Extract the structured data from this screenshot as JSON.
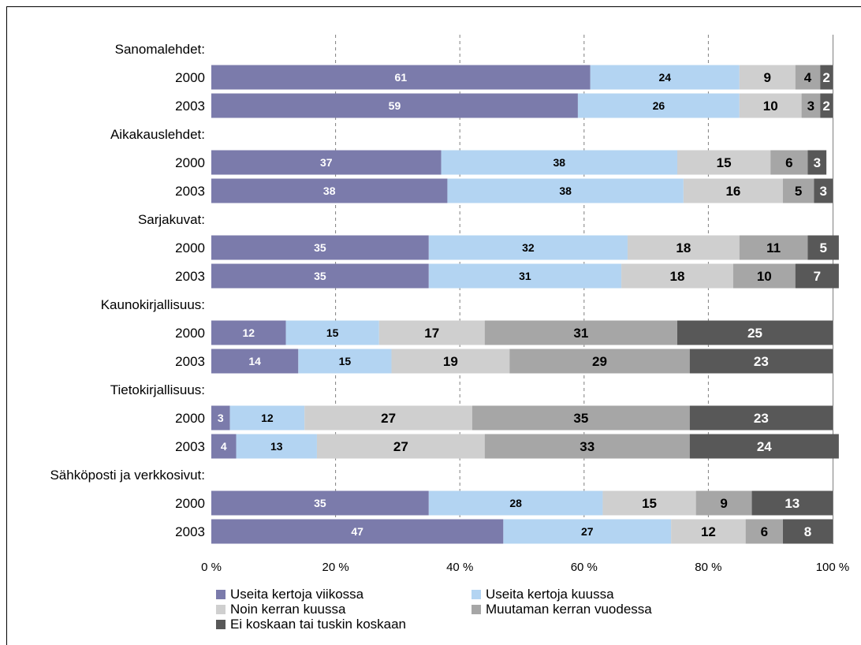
{
  "chart_data": {
    "type": "bar",
    "orientation": "horizontal",
    "stacked": "percent",
    "title": "",
    "xlabel": "",
    "ylabel": "",
    "xlim": [
      0,
      100
    ],
    "x_ticks": [
      "0 %",
      "20 %",
      "40 %",
      "60 %",
      "80 %",
      "100 %"
    ],
    "grid": "vertical dashed",
    "legend_position": "bottom",
    "series": [
      {
        "name": "Useita kertoja viikossa",
        "color": "#7b7bab"
      },
      {
        "name": "Useita kertoja kuussa",
        "color": "#b3d4f2"
      },
      {
        "name": "Noin kerran kuussa",
        "color": "#cfcfcf"
      },
      {
        "name": "Muutaman kerran vuodessa",
        "color": "#a6a6a6"
      },
      {
        "name": "Ei koskaan tai tuskin koskaan",
        "color": "#585858"
      }
    ],
    "groups": [
      {
        "label": "Sanomalehdet:",
        "rows": [
          {
            "year": "2000",
            "values": [
              61,
              24,
              9,
              4,
              2
            ]
          },
          {
            "year": "2003",
            "values": [
              59,
              26,
              10,
              3,
              2
            ]
          }
        ]
      },
      {
        "label": "Aikakauslehdet:",
        "rows": [
          {
            "year": "2000",
            "values": [
              37,
              38,
              15,
              6,
              3
            ]
          },
          {
            "year": "2003",
            "values": [
              38,
              38,
              16,
              5,
              3
            ]
          }
        ]
      },
      {
        "label": "Sarjakuvat:",
        "rows": [
          {
            "year": "2000",
            "values": [
              35,
              32,
              18,
              11,
              5
            ]
          },
          {
            "year": "2003",
            "values": [
              35,
              31,
              18,
              10,
              7
            ]
          }
        ]
      },
      {
        "label": "Kaunokirjallisuus:",
        "rows": [
          {
            "year": "2000",
            "values": [
              12,
              15,
              17,
              31,
              25
            ]
          },
          {
            "year": "2003",
            "values": [
              14,
              15,
              19,
              29,
              23
            ]
          }
        ]
      },
      {
        "label": "Tietokirjallisuus:",
        "rows": [
          {
            "year": "2000",
            "values": [
              3,
              12,
              27,
              35,
              23
            ]
          },
          {
            "year": "2003",
            "values": [
              4,
              13,
              27,
              33,
              24
            ]
          }
        ]
      },
      {
        "label": "Sähköposti ja verkkosivut:",
        "rows": [
          {
            "year": "2000",
            "values": [
              35,
              28,
              15,
              9,
              13
            ]
          },
          {
            "year": "2003",
            "values": [
              47,
              27,
              12,
              6,
              8
            ]
          }
        ]
      }
    ]
  }
}
